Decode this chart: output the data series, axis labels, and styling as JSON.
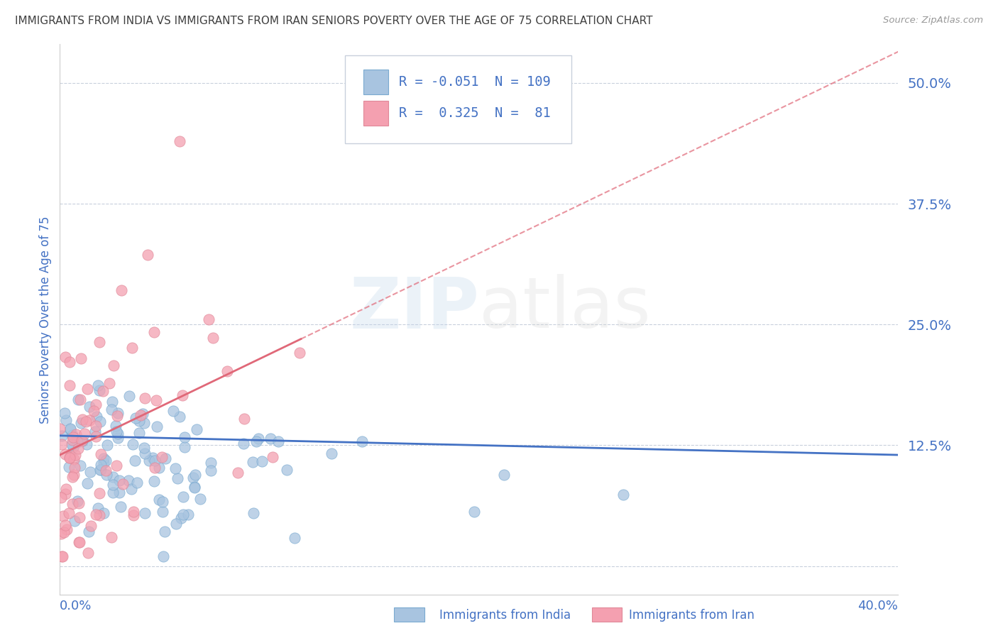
{
  "title": "IMMIGRANTS FROM INDIA VS IMMIGRANTS FROM IRAN SENIORS POVERTY OVER THE AGE OF 75 CORRELATION CHART",
  "source": "Source: ZipAtlas.com",
  "ylabel": "Seniors Poverty Over the Age of 75",
  "yticks": [
    0.0,
    0.125,
    0.25,
    0.375,
    0.5
  ],
  "ytick_labels": [
    "",
    "12.5%",
    "25.0%",
    "37.5%",
    "50.0%"
  ],
  "xlim": [
    0.0,
    0.4
  ],
  "ylim": [
    -0.03,
    0.54
  ],
  "legend_R_india": "-0.051",
  "legend_N_india": "109",
  "legend_R_iran": "0.325",
  "legend_N_iran": "81",
  "india_color": "#a8c4e0",
  "iran_color": "#f4a0b0",
  "india_line_color": "#4472c4",
  "iran_line_color": "#e06878",
  "title_color": "#404040",
  "axis_label_color": "#4472c4",
  "background_color": "#ffffff",
  "legend_India_label": "Immigrants from India",
  "legend_Iran_label": "Immigrants from Iran"
}
